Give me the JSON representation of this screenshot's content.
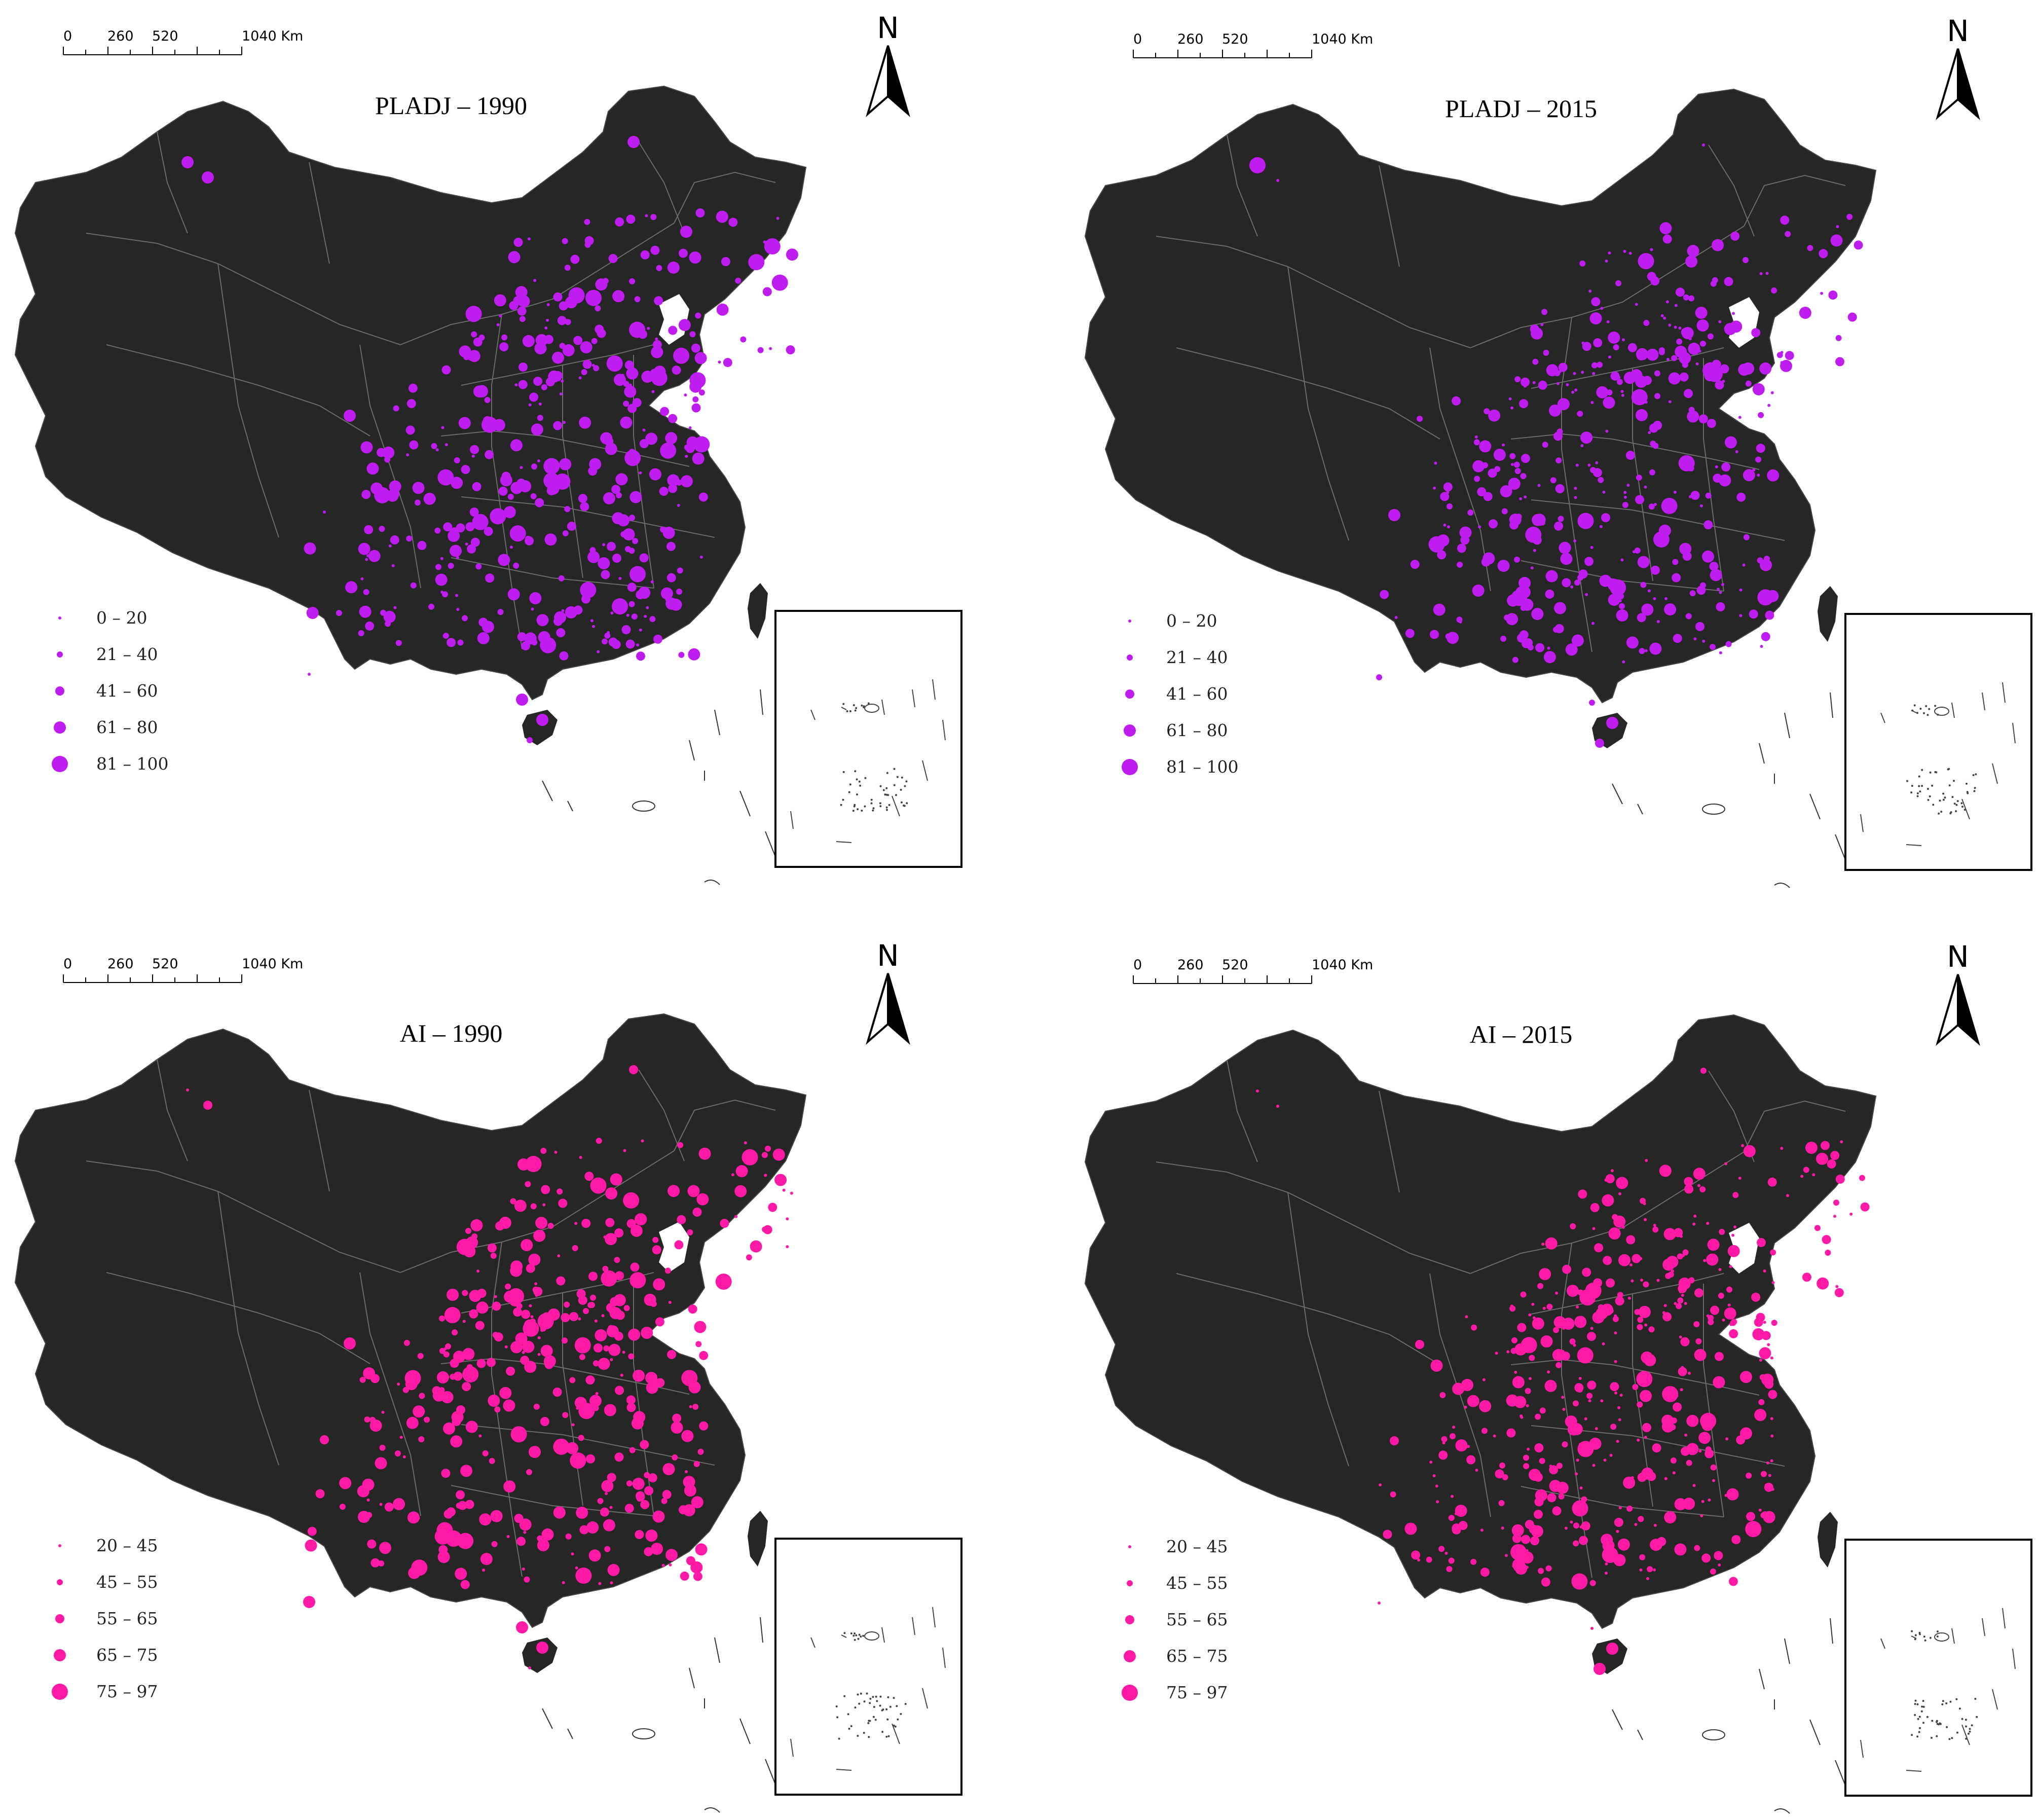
{
  "scale_bar": {
    "ticks": [
      "0",
      "260",
      "520",
      "1040 Km"
    ]
  },
  "north_label": "N",
  "colors": {
    "land": "#262626",
    "border": "#6b6b6b",
    "purple": "#bf1cf0",
    "pink": "#ff1aa6"
  },
  "panels": [
    {
      "title": "PLADJ – 1990",
      "marker_color": "purple",
      "legend": [
        "0 – 20",
        "21 – 40",
        "41 – 60",
        "61 – 80",
        "81 – 100"
      ],
      "density": 1.0,
      "size_bias": 1.15
    },
    {
      "title": "PLADJ – 2015",
      "marker_color": "purple",
      "legend": [
        "0 – 20",
        "21 – 40",
        "41 – 60",
        "61 – 80",
        "81 – 100"
      ],
      "density": 1.0,
      "size_bias": 0.8
    },
    {
      "title": "AI – 1990",
      "marker_color": "pink",
      "legend": [
        "20 – 45",
        "45 – 55",
        "55 – 65",
        "65 – 75",
        "75 – 97"
      ],
      "density": 1.0,
      "size_bias": 1.3
    },
    {
      "title": "AI – 2015",
      "marker_color": "pink",
      "legend": [
        "20 – 45",
        "45 – 55",
        "55 – 65",
        "65 – 75",
        "75 – 97"
      ],
      "density": 1.15,
      "size_bias": 0.7
    }
  ]
}
